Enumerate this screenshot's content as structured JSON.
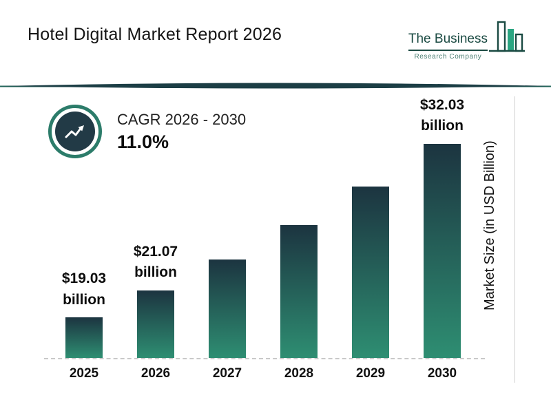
{
  "header": {
    "title": "Hotel Digital Market Report 2026",
    "logo": {
      "line1": "The Business",
      "line2": "Research Company"
    }
  },
  "cagr": {
    "label": "CAGR 2026 - 2030",
    "value": "11.0%"
  },
  "chart_data": {
    "type": "bar",
    "title": "Hotel Digital Market Report 2026",
    "categories": [
      "2025",
      "2026",
      "2027",
      "2028",
      "2029",
      "2030"
    ],
    "values": [
      19.03,
      21.07,
      23.39,
      25.96,
      28.82,
      32.03
    ],
    "bar_labels": [
      {
        "value": "$19.03",
        "unit": "billion"
      },
      {
        "value": "$21.07",
        "unit": "billion"
      },
      null,
      null,
      null,
      {
        "value": "$32.03",
        "unit": "billion"
      }
    ],
    "xlabel": "",
    "ylabel": "Market Size (in USD Billion)",
    "ylim": [
      16,
      33
    ],
    "grid": false,
    "legend": false,
    "bar_gradient": [
      "#1c3440",
      "#2e8e72"
    ],
    "cagr_annotation": {
      "label": "CAGR 2026 - 2030",
      "value": "11.0%"
    }
  },
  "colors": {
    "accent_teal": "#2c7c6a",
    "dark_navy": "#223a46",
    "logo_teal": "#1a4a42",
    "logo_fill_green": "#2aa581",
    "divider": "#1c4a44",
    "baseline_gray": "#c9c9c9"
  }
}
